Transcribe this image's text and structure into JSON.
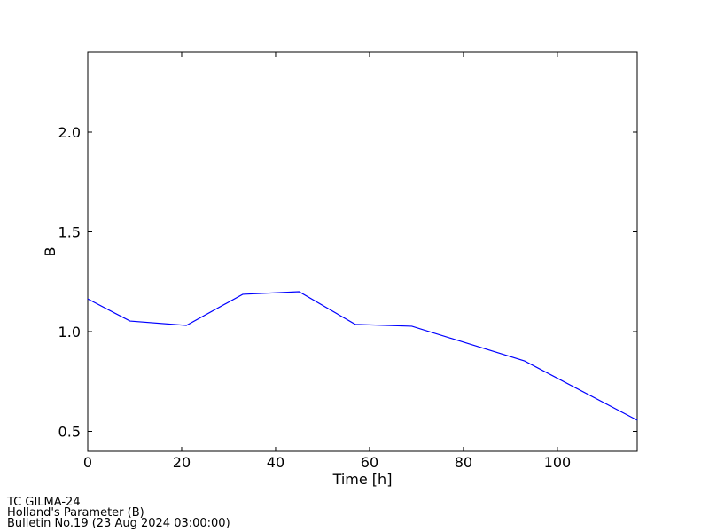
{
  "chart_data": {
    "type": "line",
    "x_label": "Time [h]",
    "y_label": "B",
    "x": [
      0,
      9,
      21,
      33,
      45,
      57,
      69,
      93,
      117
    ],
    "series": [
      {
        "name": "B",
        "color": "#0000ff",
        "values": [
          1.164,
          1.053,
          1.031,
          1.187,
          1.2,
          1.036,
          1.027,
          0.853,
          0.556
        ]
      }
    ],
    "xlim": [
      0,
      117
    ],
    "ylim": [
      0.4,
      2.4
    ],
    "xticks": [
      0,
      20,
      40,
      60,
      80,
      100
    ],
    "yticks": [
      0.5,
      {
        "value": 1.0,
        "label": "1.0"
      },
      1.5,
      {
        "value": 2.0,
        "label": "2.0"
      }
    ],
    "grid": false,
    "notes": [
      "TC GILMA-24",
      "Holland's Parameter (B)",
      "Bulletin No.19 (23 Aug 2024  03:00:00)"
    ]
  }
}
